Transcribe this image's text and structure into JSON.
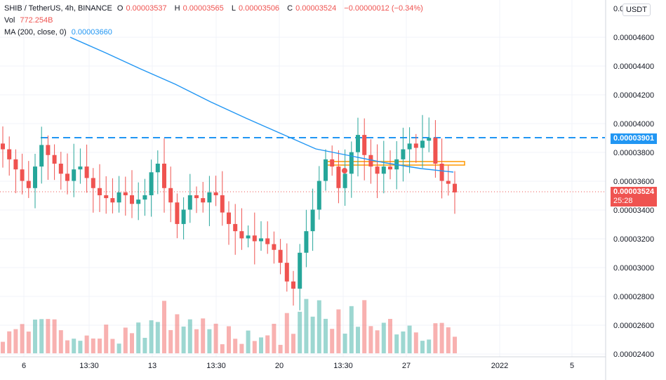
{
  "legend": {
    "symbol": "SHIB / TetherUS, 4h, BINANCE",
    "o_label": "O",
    "o_value": "0.00003537",
    "h_label": "H",
    "h_value": "0.00003565",
    "l_label": "L",
    "l_value": "0.00003506",
    "c_label": "C",
    "c_value": "0.00003524",
    "change": "−0.00000012 (−0.34%)",
    "vol_label": "Vol",
    "vol_value": "772.254B",
    "ma_label": "MA (200, close, 0)",
    "ma_value": "0.00003660"
  },
  "currency_button": "USDT",
  "price_axis": {
    "top_partial": "0.0",
    "ticks": [
      "0.00004600",
      "0.00004400",
      "0.00004200",
      "0.00004000",
      "0.00003800",
      "0.00003600",
      "0.00003400",
      "0.00003200",
      "0.00003000",
      "0.00002800",
      "0.00002600",
      "0.00002400"
    ]
  },
  "time_axis": {
    "ticks": [
      "6",
      "13:30",
      "13",
      "13:30",
      "20",
      "13:30",
      "27",
      "2022",
      "5"
    ]
  },
  "resistance_tag": "0.00003901",
  "last_price_tag": "0.00003524",
  "countdown": "25:28",
  "colors": {
    "up": "#26a69a",
    "down": "#ef5350",
    "ma": "#2196f3",
    "zone": "#ff9800"
  },
  "chart_data": {
    "type": "candlestick",
    "symbol": "SHIB / TetherUS",
    "interval": "4h",
    "ylim": [
      2.4e-05,
      4.75e-05
    ],
    "horizontal_level": 3.901e-05,
    "last_price": 3.524e-05,
    "ma200_last": 3.66e-05,
    "zone": [
      3.71e-05,
      3.73e-05
    ],
    "closes_approx": [
      3.82e-05,
      3.75e-05,
      3.68e-05,
      3.6e-05,
      3.55e-05,
      3.7e-05,
      3.85e-05,
      3.78e-05,
      3.72e-05,
      3.65e-05,
      3.6e-05,
      3.68e-05,
      3.7e-05,
      3.62e-05,
      3.55e-05,
      3.5e-05,
      3.48e-05,
      3.45e-05,
      3.52e-05,
      3.5e-05,
      3.44e-05,
      3.47e-05,
      3.5e-05,
      3.66e-05,
      3.72e-05,
      3.55e-05,
      3.45e-05,
      3.3e-05,
      3.4e-05,
      3.5e-05,
      3.48e-05,
      3.45e-05,
      3.52e-05,
      3.5e-05,
      3.38e-05,
      3.3e-05,
      3.25e-05,
      3.2e-05,
      3.22e-05,
      3.18e-05,
      3.2e-05,
      3.16e-05,
      3.12e-05,
      3.03e-05,
      2.9e-05,
      2.85e-05,
      3.1e-05,
      3.25e-05,
      3.4e-05,
      3.6e-05,
      3.75e-05,
      3.7e-05,
      3.55e-05,
      3.65e-05,
      3.8e-05,
      3.92e-05,
      3.78e-05,
      3.7e-05,
      3.65e-05,
      3.7e-05,
      3.68e-05,
      3.75e-05,
      3.82e-05,
      3.86e-05,
      3.83e-05,
      3.88e-05,
      3.9e-05,
      3.72e-05,
      3.6e-05,
      3.58e-05,
      3.52e-05
    ]
  }
}
